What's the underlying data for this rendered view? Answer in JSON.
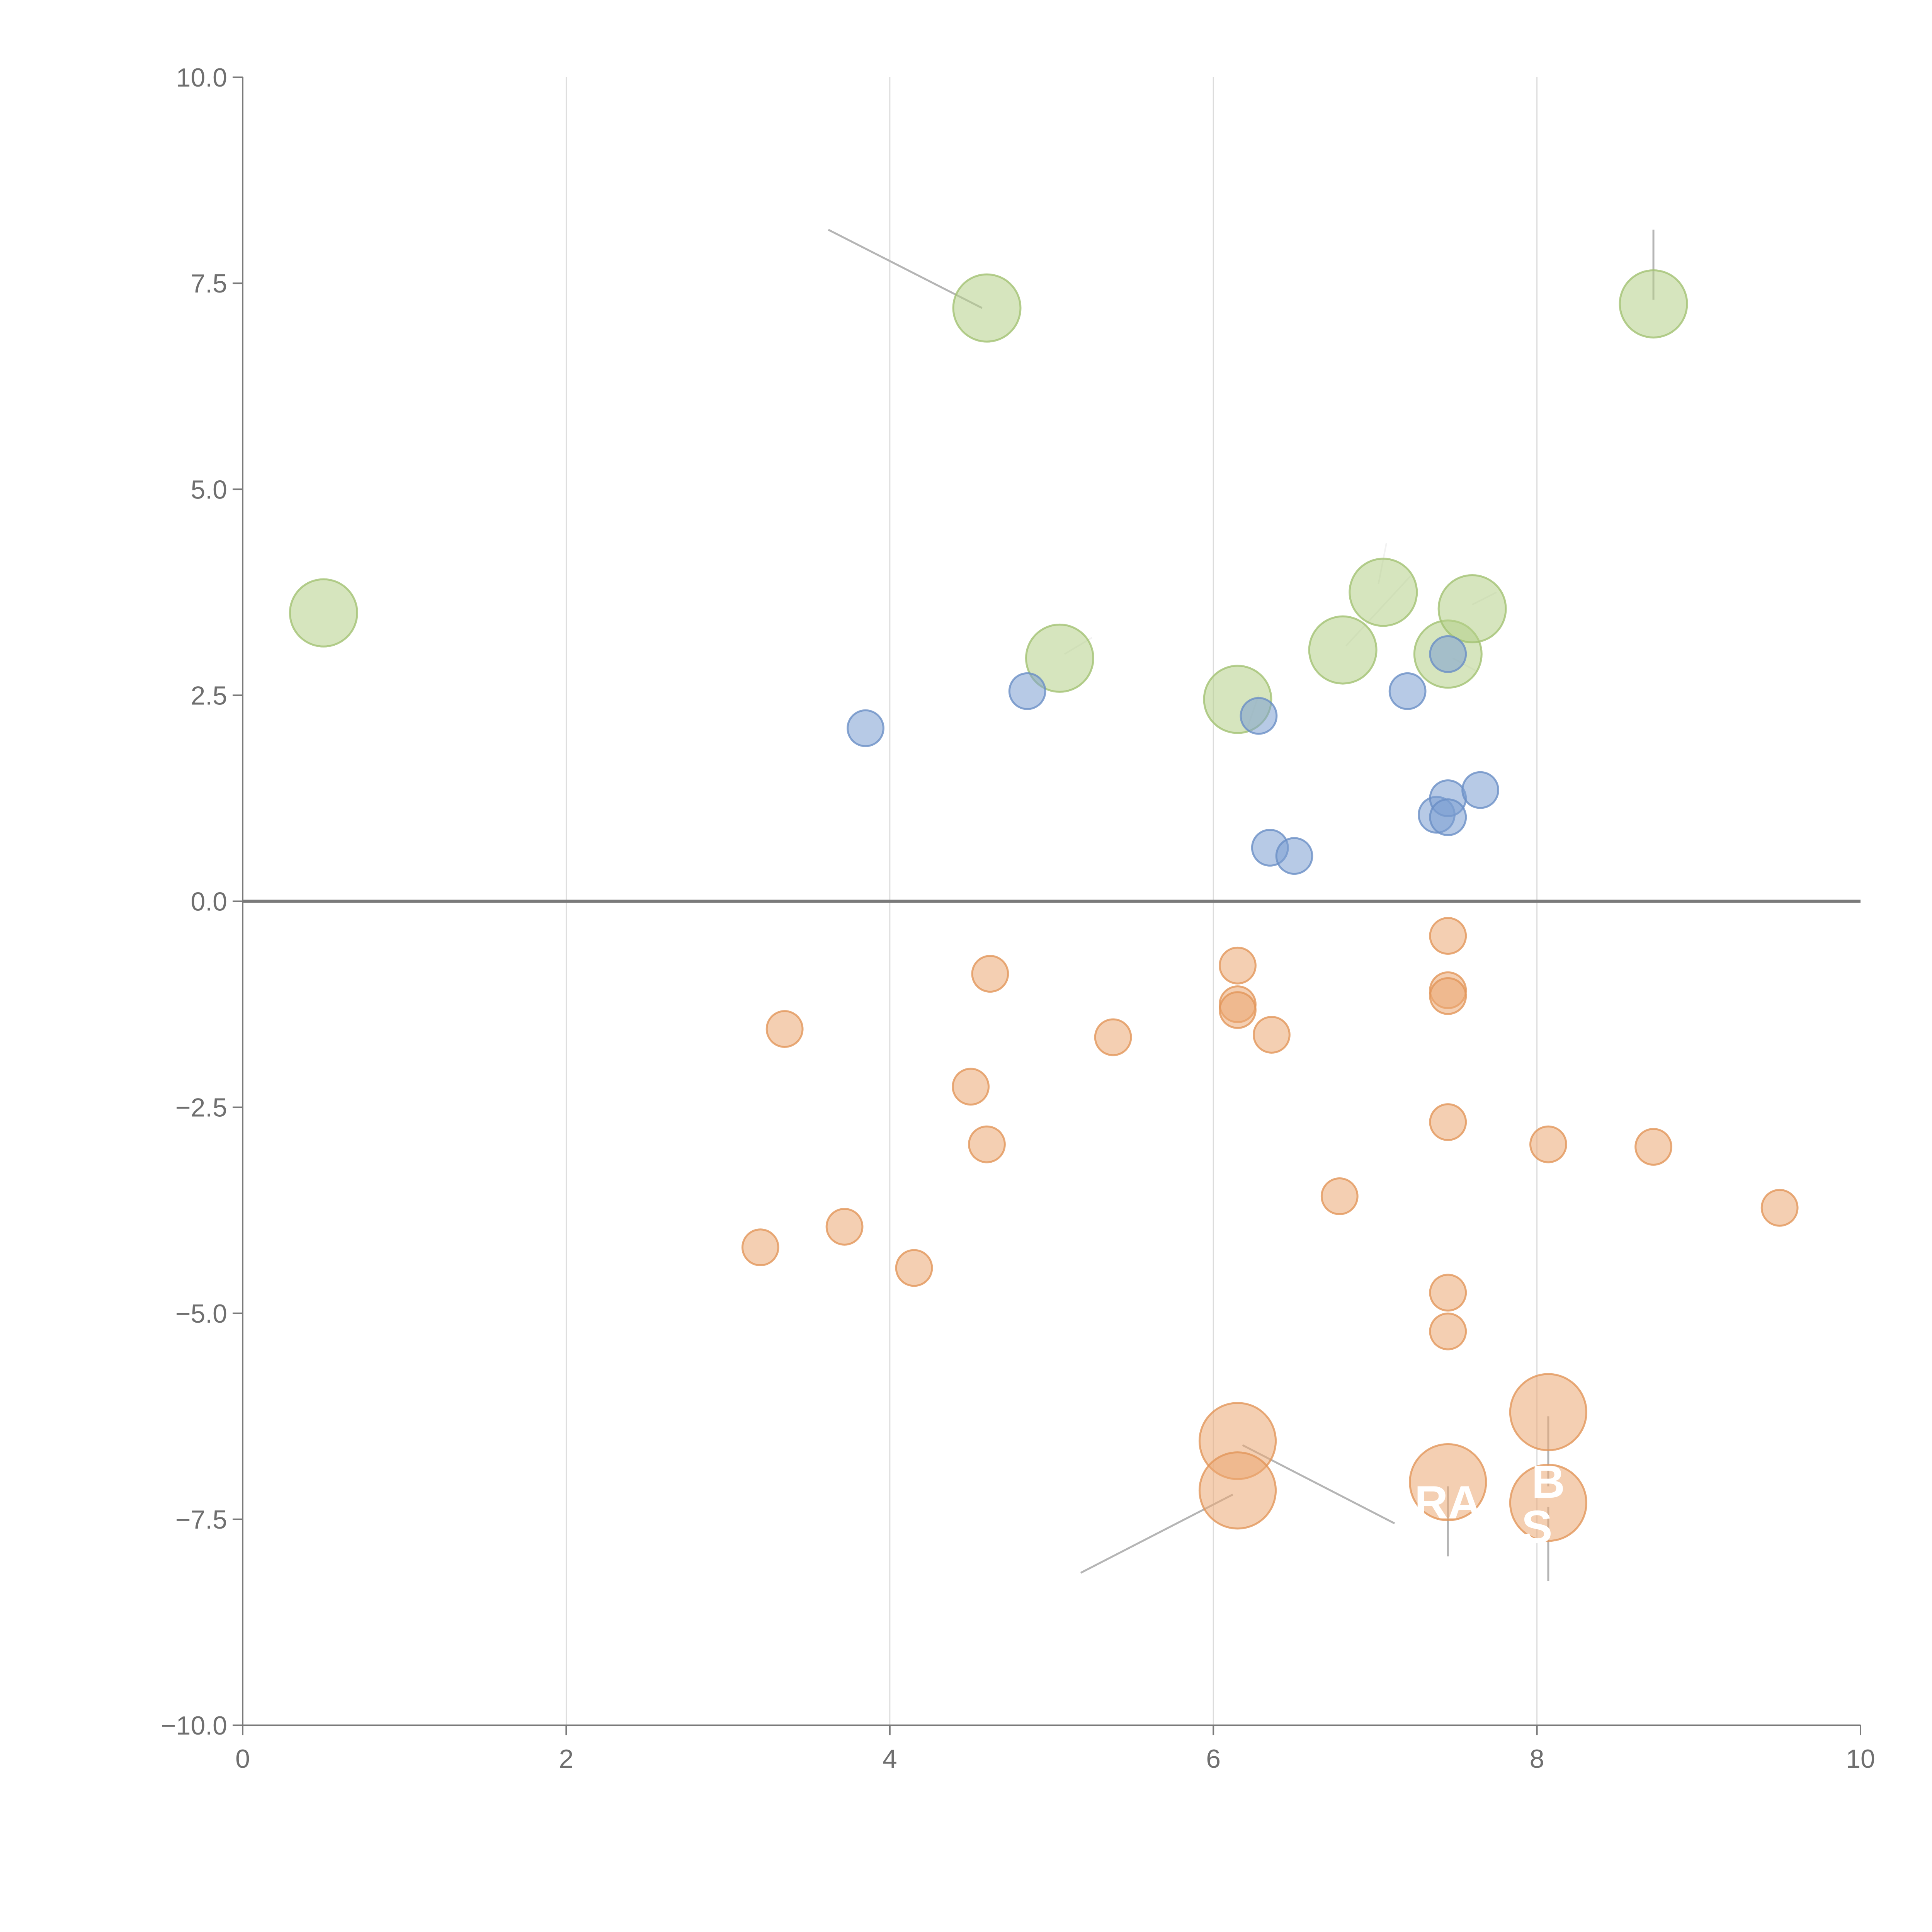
{
  "chart_data": {
    "type": "scatter",
    "title": "",
    "xlabel": "",
    "ylabel": "",
    "xlim": [
      0,
      10
    ],
    "ylim": [
      -10,
      10
    ],
    "x_ticks": [
      "0",
      "2",
      "4",
      "6",
      "8",
      "10"
    ],
    "y_ticks": [
      "10.0",
      "7.5",
      "5.0",
      "2.5",
      "0.0",
      "−2.5",
      "−5.0",
      "−7.5",
      "−10.0"
    ],
    "x_tick_values": [
      0,
      2,
      4,
      6,
      8,
      10
    ],
    "y_tick_values": [
      10,
      7.5,
      5,
      2.5,
      0,
      -2.5,
      -5,
      -7.5,
      -10
    ],
    "grid": "vertical",
    "series": [
      {
        "name": "green",
        "color": "#b5cf89",
        "stroke": "#a3c273",
        "size": 3,
        "points": [
          {
            "x": 0.5,
            "y": 3.5
          },
          {
            "x": 4.6,
            "y": 7.2
          },
          {
            "x": 5.05,
            "y": 2.95
          },
          {
            "x": 6.15,
            "y": 2.45
          },
          {
            "x": 6.8,
            "y": 3.05
          },
          {
            "x": 7.05,
            "y": 3.75
          },
          {
            "x": 7.45,
            "y": 3.0
          },
          {
            "x": 7.6,
            "y": 3.55
          },
          {
            "x": 8.72,
            "y": 7.25
          }
        ]
      },
      {
        "name": "blue",
        "color": "#7c9fd1",
        "stroke": "#6a8fc6",
        "size": 1.6,
        "points": [
          {
            "x": 3.85,
            "y": 2.1
          },
          {
            "x": 4.85,
            "y": 2.55
          },
          {
            "x": 6.28,
            "y": 2.25
          },
          {
            "x": 6.35,
            "y": 0.65
          },
          {
            "x": 6.5,
            "y": 0.55
          },
          {
            "x": 7.2,
            "y": 2.55
          },
          {
            "x": 7.45,
            "y": 3.0
          },
          {
            "x": 7.38,
            "y": 1.05
          },
          {
            "x": 7.45,
            "y": 1.25
          },
          {
            "x": 7.45,
            "y": 1.02
          },
          {
            "x": 7.65,
            "y": 1.35
          }
        ]
      },
      {
        "name": "orange",
        "color": "#eba873",
        "stroke": "#e2965a",
        "size": 1.6,
        "points": [
          {
            "x": 3.2,
            "y": -4.2
          },
          {
            "x": 3.35,
            "y": -1.55
          },
          {
            "x": 3.72,
            "y": -3.95
          },
          {
            "x": 4.15,
            "y": -4.45
          },
          {
            "x": 4.5,
            "y": -2.25
          },
          {
            "x": 4.6,
            "y": -2.95
          },
          {
            "x": 4.62,
            "y": -0.88
          },
          {
            "x": 5.38,
            "y": -1.65
          },
          {
            "x": 6.15,
            "y": -0.78
          },
          {
            "x": 6.15,
            "y": -1.25
          },
          {
            "x": 6.15,
            "y": -1.32
          },
          {
            "x": 6.36,
            "y": -1.62
          },
          {
            "x": 6.78,
            "y": -3.58
          },
          {
            "x": 7.45,
            "y": -0.42
          },
          {
            "x": 7.45,
            "y": -1.08
          },
          {
            "x": 7.45,
            "y": -1.15
          },
          {
            "x": 7.45,
            "y": -2.68
          },
          {
            "x": 7.45,
            "y": -4.75
          },
          {
            "x": 7.45,
            "y": -5.22
          },
          {
            "x": 8.07,
            "y": -2.95
          },
          {
            "x": 8.72,
            "y": -2.98
          },
          {
            "x": 9.5,
            "y": -3.72
          }
        ]
      },
      {
        "name": "orange-large",
        "color": "#eba873",
        "stroke": "#e2965a",
        "size": 3.4,
        "points": [
          {
            "x": 6.15,
            "y": -6.55
          },
          {
            "x": 6.15,
            "y": -7.15
          },
          {
            "x": 7.45,
            "y": -7.05
          },
          {
            "x": 8.07,
            "y": -6.2
          },
          {
            "x": 8.07,
            "y": -7.3
          }
        ]
      }
    ],
    "leaders": [
      {
        "style": "gray",
        "x1": 3.62,
        "y1": 8.15,
        "x2": 4.57,
        "y2": 7.2
      },
      {
        "style": "gray",
        "x1": 8.72,
        "y1": 8.15,
        "x2": 8.72,
        "y2": 7.3
      },
      {
        "style": "gray",
        "x1": 5.18,
        "y1": -8.15,
        "x2": 6.12,
        "y2": -7.2
      },
      {
        "style": "gray",
        "x1": 6.18,
        "y1": -6.6,
        "x2": 7.12,
        "y2": -7.55
      },
      {
        "style": "gray",
        "x1": 7.45,
        "y1": -7.1,
        "x2": 7.45,
        "y2": -7.95
      },
      {
        "style": "gray",
        "x1": 8.07,
        "y1": -6.25,
        "x2": 8.07,
        "y2": -7.1
      },
      {
        "style": "gray",
        "x1": 8.07,
        "y1": -7.35,
        "x2": 8.07,
        "y2": -8.25
      },
      {
        "style": "light",
        "x1": 5.08,
        "y1": 3.0,
        "x2": 5.25,
        "y2": 3.2
      },
      {
        "style": "light",
        "x1": 6.82,
        "y1": 3.1,
        "x2": 7.22,
        "y2": 3.95
      },
      {
        "style": "light",
        "x1": 7.02,
        "y1": 3.85,
        "x2": 7.07,
        "y2": 4.35
      },
      {
        "style": "light",
        "x1": 7.6,
        "y1": 3.6,
        "x2": 7.75,
        "y2": 3.75
      },
      {
        "style": "light",
        "x1": 7.48,
        "y1": 2.95,
        "x2": 7.62,
        "y2": 2.8
      },
      {
        "style": "light",
        "x1": 6.2,
        "y1": 2.05,
        "x2": 6.28,
        "y2": 2.5
      }
    ],
    "annotations": [
      {
        "text": "RA",
        "x": 7.45,
        "y": -7.3
      },
      {
        "text": "B",
        "x": 8.07,
        "y": -7.05
      },
      {
        "text": "S",
        "x": 8.0,
        "y": -7.6
      }
    ]
  }
}
